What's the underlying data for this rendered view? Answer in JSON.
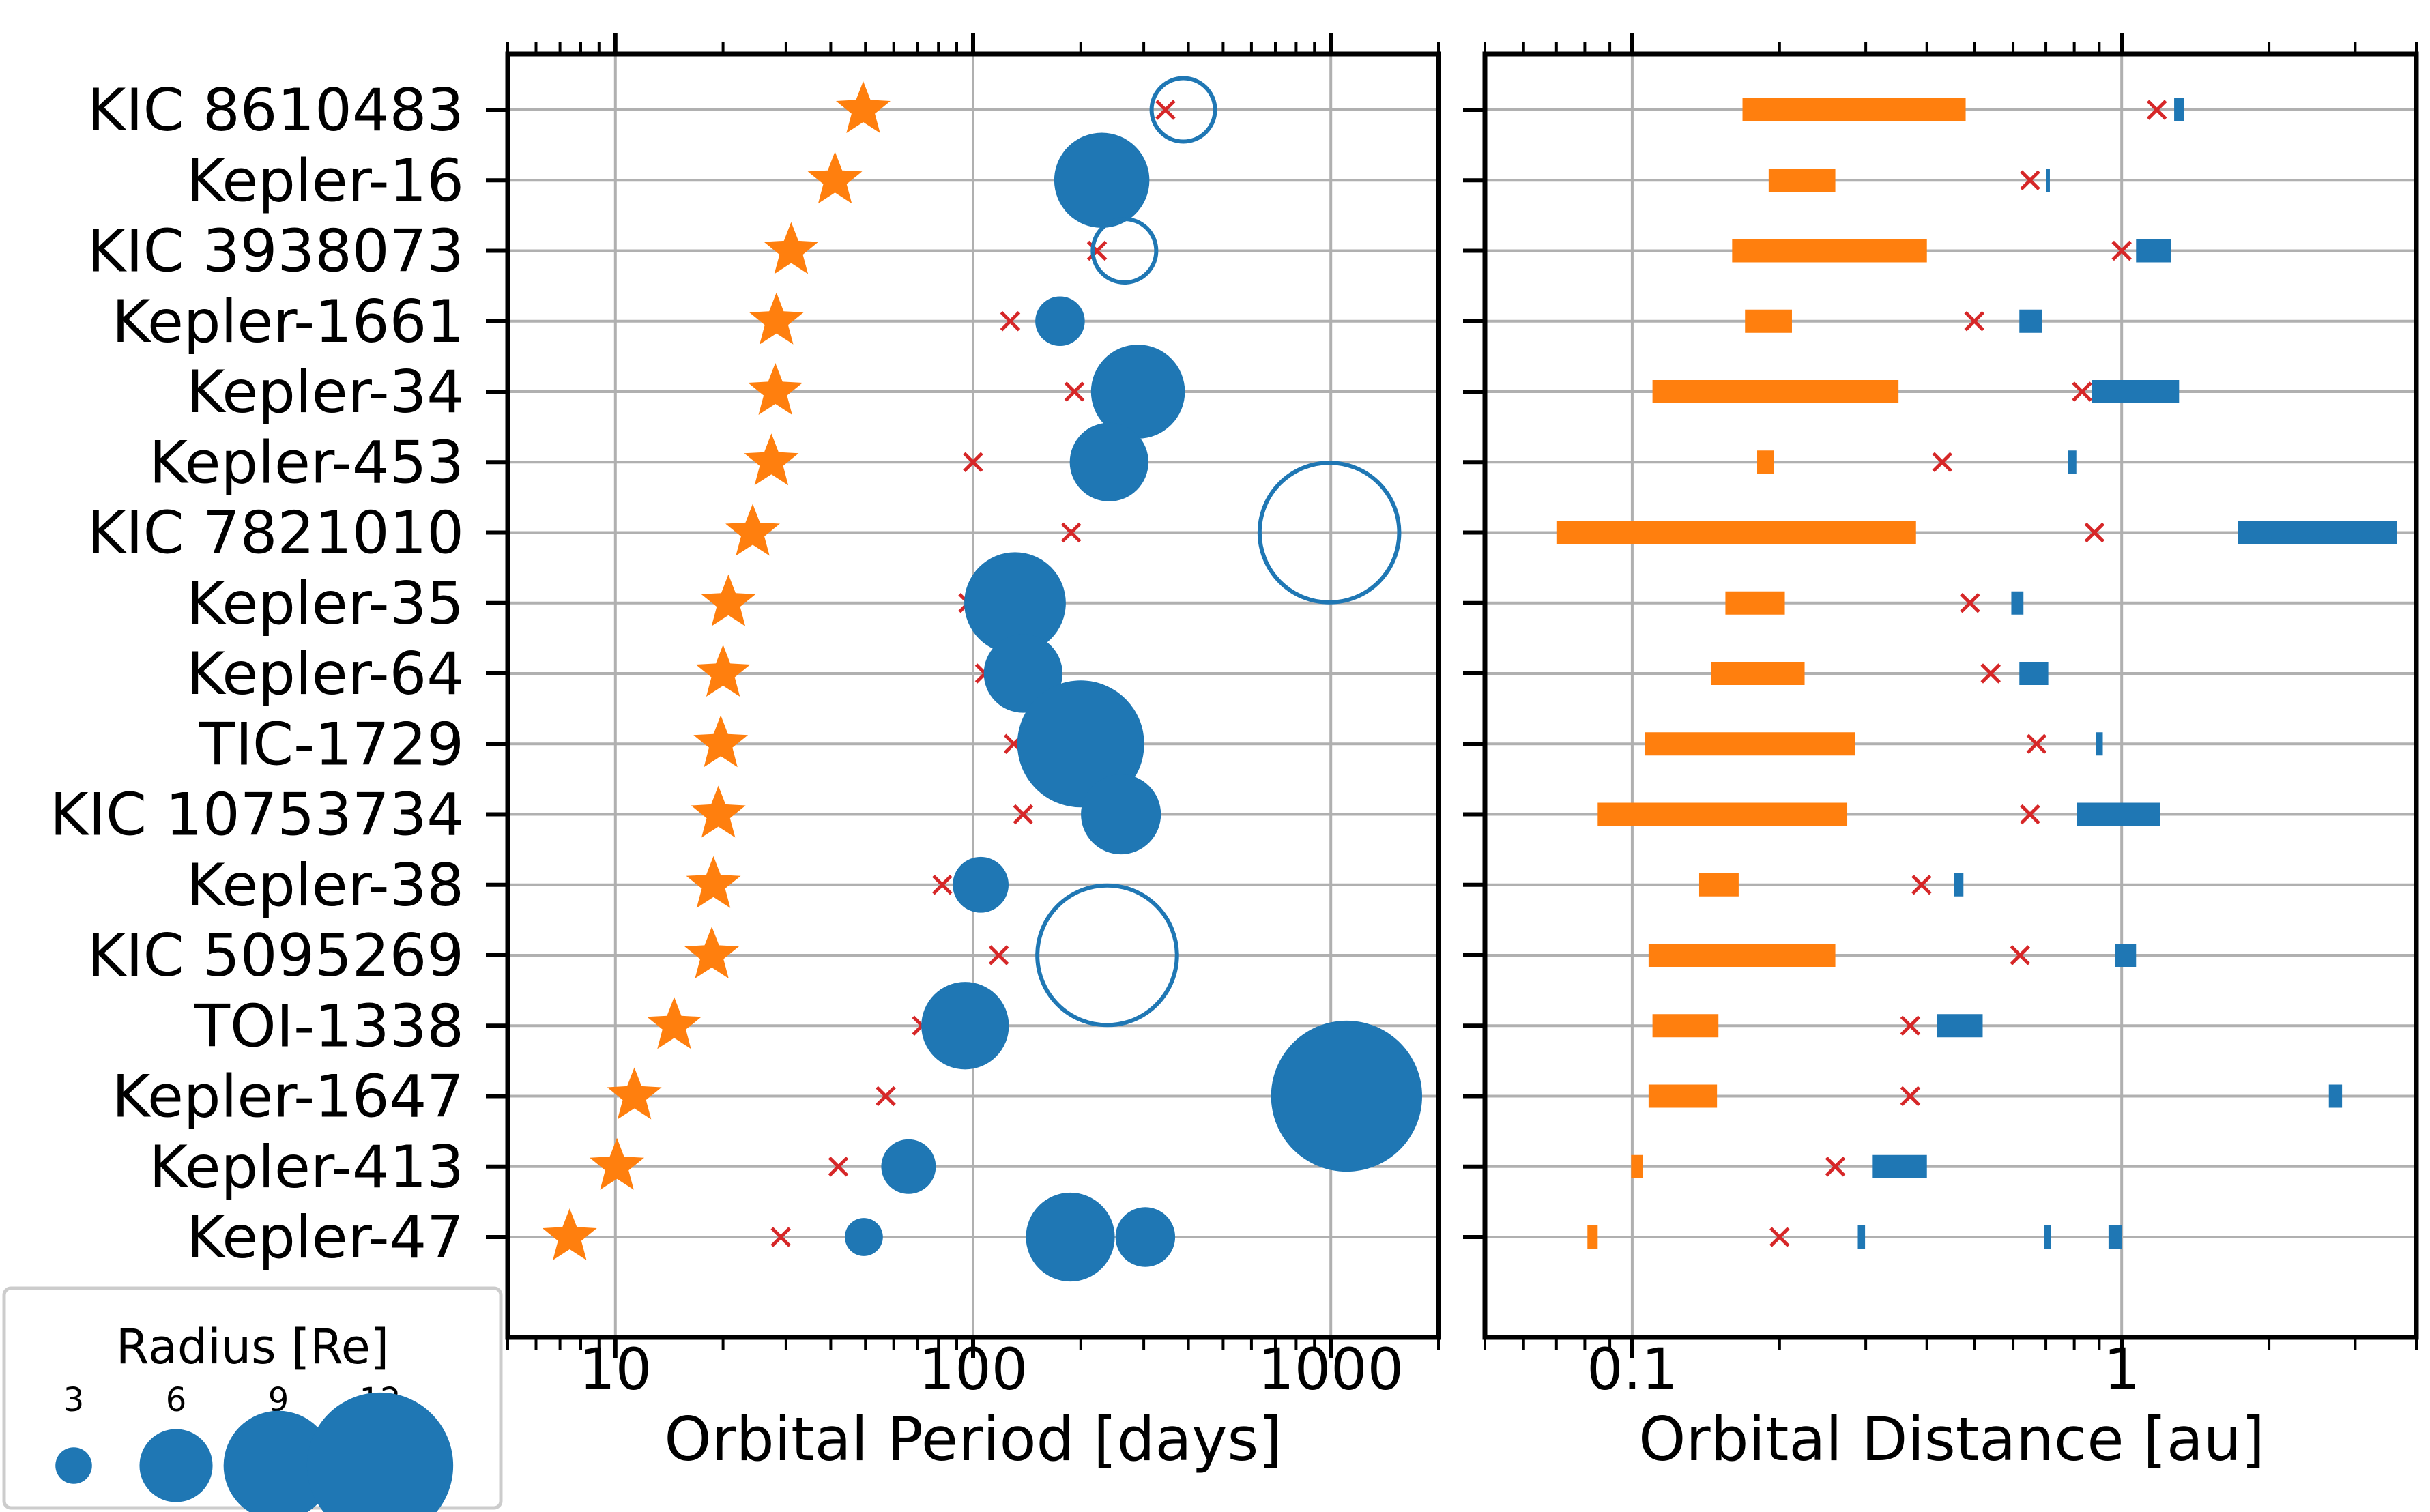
{
  "chart_data": [
    {
      "type": "scatter",
      "panel": "period",
      "xlabel": "Orbital Period [days]",
      "xscale": "log",
      "xlim": [
        5,
        2000
      ],
      "xticks": [
        10,
        100,
        1000
      ],
      "xtick_labels": [
        "10",
        "100",
        "1000"
      ],
      "grid": true,
      "categories": [
        "KIC 8610483",
        "Kepler-16",
        "KIC 3938073",
        "Kepler-1661",
        "Kepler-34",
        "Kepler-453",
        "KIC 7821010",
        "Kepler-35",
        "Kepler-64",
        "TIC-1729",
        "KIC 10753734",
        "Kepler-38",
        "KIC 5095269",
        "TOI-1338",
        "Kepler-1647",
        "Kepler-413",
        "Kepler-47"
      ],
      "binary_period": [
        49.3,
        41.1,
        31.0,
        28.2,
        28.0,
        27.3,
        24.2,
        20.7,
        20.0,
        19.7,
        19.4,
        18.8,
        18.6,
        14.6,
        11.3,
        10.1,
        7.45
      ],
      "critical_period": [
        345,
        200,
        222,
        127,
        192,
        100,
        188,
        97,
        108,
        130,
        138,
        82,
        118,
        72,
        57,
        42,
        29
      ],
      "planets": [
        {
          "system": "KIC 8610483",
          "period": 387,
          "radius": 5.0,
          "filled": false
        },
        {
          "system": "Kepler-16",
          "period": 229,
          "radius": 7.5,
          "filled": true
        },
        {
          "system": "KIC 3938073",
          "period": 265,
          "radius": 5.0,
          "filled": false
        },
        {
          "system": "Kepler-1661",
          "period": 175,
          "radius": 3.9,
          "filled": true
        },
        {
          "system": "Kepler-34",
          "period": 289,
          "radius": 7.4,
          "filled": true
        },
        {
          "system": "Kepler-453",
          "period": 240,
          "radius": 6.2,
          "filled": true
        },
        {
          "system": "KIC 7821010",
          "period": 991,
          "radius": 11.0,
          "filled": false
        },
        {
          "system": "Kepler-35",
          "period": 131,
          "radius": 8.0,
          "filled": true
        },
        {
          "system": "Kepler-64",
          "period": 138,
          "radius": 6.2,
          "filled": true
        },
        {
          "system": "TIC-1729",
          "period": 200,
          "radius": 10.0,
          "filled": true
        },
        {
          "system": "KIC 10753734",
          "period": 259,
          "radius": 6.3,
          "filled": true
        },
        {
          "system": "Kepler-38",
          "period": 105,
          "radius": 4.4,
          "filled": true
        },
        {
          "system": "KIC 5095269",
          "period": 237,
          "radius": 11.0,
          "filled": false
        },
        {
          "system": "TOI-1338",
          "period": 95,
          "radius": 6.9,
          "filled": true
        },
        {
          "system": "Kepler-1647",
          "period": 1107,
          "radius": 11.9,
          "filled": true
        },
        {
          "system": "Kepler-413",
          "period": 66,
          "radius": 4.3,
          "filled": true
        },
        {
          "system": "Kepler-47",
          "period": 49.5,
          "radius": 3.0,
          "filled": true
        },
        {
          "system": "Kepler-47",
          "period": 187,
          "radius": 7.0,
          "filled": true
        },
        {
          "system": "Kepler-47",
          "period": 303,
          "radius": 4.7,
          "filled": true
        }
      ]
    },
    {
      "type": "range",
      "panel": "distance",
      "xlabel": "Orbital Distance [au]",
      "xscale": "log",
      "xlim": [
        0.05,
        4.0
      ],
      "xticks": [
        0.1,
        1
      ],
      "xtick_labels": [
        "0.1",
        "1"
      ],
      "grid": true,
      "categories": [
        "KIC 8610483",
        "Kepler-16",
        "KIC 3938073",
        "Kepler-1661",
        "Kepler-34",
        "Kepler-453",
        "KIC 7821010",
        "Kepler-35",
        "Kepler-64",
        "TIC-1729",
        "KIC 10753734",
        "Kepler-38",
        "KIC 5095269",
        "TOI-1338",
        "Kepler-1647",
        "Kepler-413",
        "Kepler-47"
      ],
      "binary_range": [
        [
          0.168,
          0.48
        ],
        [
          0.19,
          0.26
        ],
        [
          0.16,
          0.4
        ],
        [
          0.17,
          0.212
        ],
        [
          0.11,
          0.35
        ],
        [
          0.18,
          0.195
        ],
        [
          0.07,
          0.38
        ],
        [
          0.155,
          0.205
        ],
        [
          0.145,
          0.225
        ],
        [
          0.106,
          0.285
        ],
        [
          0.085,
          0.275
        ],
        [
          0.137,
          0.165
        ],
        [
          0.108,
          0.26
        ],
        [
          0.11,
          0.15
        ],
        [
          0.108,
          0.149
        ],
        [
          0.0995,
          0.105
        ],
        [
          0.081,
          0.085
        ]
      ],
      "critical_distance": [
        1.18,
        0.65,
        1.0,
        0.5,
        0.83,
        0.43,
        0.88,
        0.49,
        0.54,
        0.67,
        0.65,
        0.39,
        0.62,
        0.37,
        0.37,
        0.26,
        0.2
      ],
      "planet_range": [
        [
          1.28,
          1.34
        ],
        [
          0.702,
          0.708
        ],
        [
          1.07,
          1.26
        ],
        [
          0.618,
          0.688
        ],
        [
          0.87,
          1.31
        ],
        [
          0.778,
          0.808
        ],
        [
          1.73,
          3.65
        ],
        [
          0.595,
          0.63
        ],
        [
          0.618,
          0.708
        ],
        [
          0.885,
          0.915
        ],
        [
          0.81,
          1.2
        ],
        [
          0.455,
          0.475
        ],
        [
          0.97,
          1.07
        ],
        [
          0.42,
          0.52
        ],
        [
          2.65,
          2.82
        ],
        [
          0.31,
          0.4
        ],
        [
          [
            0.289,
            0.299
          ],
          [
            0.695,
            0.716
          ],
          [
            0.94,
            1.0
          ]
        ]
      ]
    }
  ],
  "legend": {
    "title": "Radius [Re]",
    "entries": [
      {
        "label": "3",
        "radius": 3
      },
      {
        "label": "6",
        "radius": 6
      },
      {
        "label": "9",
        "radius": 9
      },
      {
        "label": "12",
        "radius": 12
      }
    ]
  },
  "colors": {
    "binary": "#ff7f0e",
    "planet": "#1f77b4",
    "critical": "#d62728",
    "grid": "#b0b0b0",
    "axes": "#000000"
  }
}
